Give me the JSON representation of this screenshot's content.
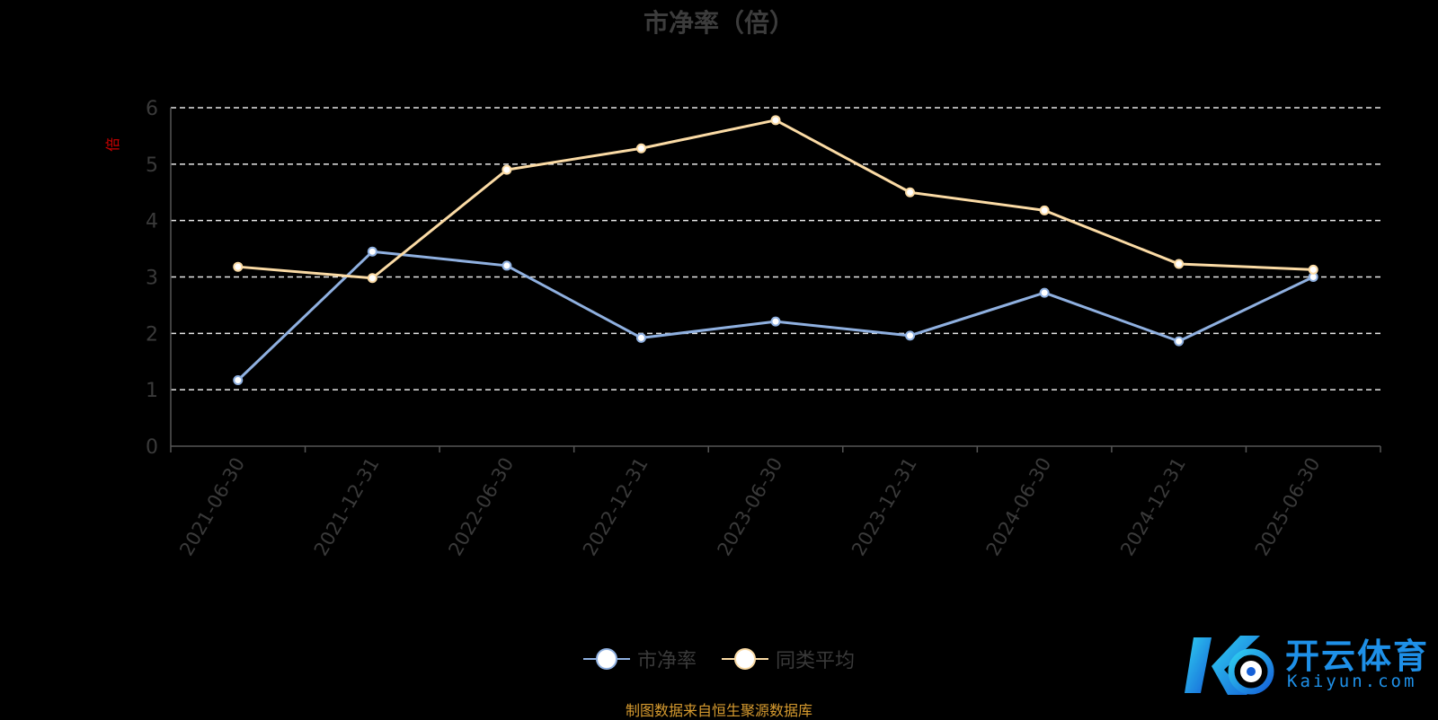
{
  "chart_data": {
    "type": "line",
    "title": "市净率（倍）",
    "ylabel": "倍",
    "ylim": [
      0,
      6
    ],
    "yticks": [
      0,
      1,
      2,
      3,
      4,
      5,
      6
    ],
    "categories": [
      "2021-06-30",
      "2021-12-31",
      "2022-06-30",
      "2022-12-31",
      "2023-06-30",
      "2023-12-31",
      "2024-06-30",
      "2024-12-31",
      "2025-06-30"
    ],
    "series": [
      {
        "name": "市净率",
        "color": "#8fb0e0",
        "values": [
          1.17,
          3.45,
          3.2,
          1.92,
          2.21,
          1.96,
          2.72,
          1.86,
          3.0
        ]
      },
      {
        "name": "同类平均",
        "color": "#fbdba5",
        "values": [
          3.18,
          2.98,
          4.9,
          5.28,
          5.78,
          4.5,
          4.18,
          3.23,
          3.13
        ]
      }
    ],
    "grid": true,
    "legend_position": "bottom-center"
  },
  "footer": {
    "source": "制图数据来自恒生聚源数据库"
  },
  "watermark": {
    "brand": "开云体育",
    "site": "Kaiyun.com"
  }
}
